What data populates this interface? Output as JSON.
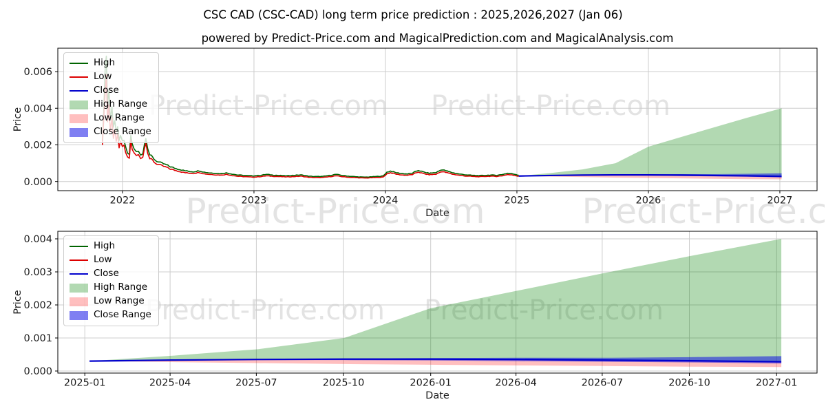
{
  "title": "CSC CAD (CSC-CAD) long term price prediction : 2025,2026,2027 (Jan 06)",
  "subtitle": "powered by Predict-Price.com and MagicalPrediction.com and MagicalAnalysis.com",
  "watermark": {
    "text": "Predict-Price.com",
    "color": "#e3e3e3"
  },
  "colors": {
    "high_line": "#006400",
    "low_line": "#dd0000",
    "close_line": "#0000cd",
    "high_range_fill": "rgba(0,128,0,0.3)",
    "low_range_fill": "rgba(255,0,0,0.25)",
    "close_range_fill": "rgba(0,0,230,0.5)",
    "grid": "#cccccc",
    "spine": "#000000",
    "tick_text": "#1a1a1a"
  },
  "legend_items": [
    {
      "label": "High",
      "type": "line",
      "color": "#006400"
    },
    {
      "label": "Low",
      "type": "line",
      "color": "#dd0000"
    },
    {
      "label": "Close",
      "type": "line",
      "color": "#0000cd"
    },
    {
      "label": "High Range",
      "type": "patch",
      "color": "rgba(0,128,0,0.3)"
    },
    {
      "label": "Low Range",
      "type": "patch",
      "color": "rgba(255,0,0,0.25)"
    },
    {
      "label": "Close Range",
      "type": "patch",
      "color": "rgba(0,0,230,0.5)"
    }
  ],
  "chart_data": [
    {
      "type": "line",
      "name": "history-and-forecast",
      "xlabel": "Date",
      "ylabel": "Price",
      "grid": true,
      "legend_position": "upper left",
      "xtick_labels": [
        "2022",
        "2023",
        "2024",
        "2025",
        "2026",
        "2027"
      ],
      "xtick_years": [
        2022,
        2023,
        2024,
        2025,
        2026,
        2027
      ],
      "ytick_labels": [
        "0.000",
        "0.002",
        "0.004",
        "0.006"
      ],
      "ytick_values": [
        0.0,
        0.002,
        0.004,
        0.006
      ],
      "xlim_years": [
        2021.508,
        2027.283
      ],
      "ylim": [
        -0.0005,
        0.00728
      ],
      "historical_series_note": "triples of [date, low, high]",
      "historical": [
        [
          "2021-11-06",
          0.0021,
          0.0023
        ],
        [
          "2021-11-10",
          0.0034,
          0.0038
        ],
        [
          "2021-11-14",
          0.0052,
          0.0066
        ],
        [
          "2021-11-17",
          0.0058,
          0.0068
        ],
        [
          "2021-11-20",
          0.0033,
          0.0042
        ],
        [
          "2021-11-24",
          0.0042,
          0.005
        ],
        [
          "2021-11-28",
          0.0027,
          0.0033
        ],
        [
          "2021-12-02",
          0.0036,
          0.0042
        ],
        [
          "2021-12-06",
          0.0024,
          0.003
        ],
        [
          "2021-12-10",
          0.0028,
          0.0033
        ],
        [
          "2021-12-14",
          0.0021,
          0.0026
        ],
        [
          "2021-12-18",
          0.0025,
          0.0029
        ],
        [
          "2021-12-22",
          0.0019,
          0.0023
        ],
        [
          "2021-12-26",
          0.0021,
          0.0024
        ],
        [
          "2021-12-31",
          0.00185,
          0.00215
        ],
        [
          "2022-01-05",
          0.002,
          0.00225
        ],
        [
          "2022-01-10",
          0.0015,
          0.0018
        ],
        [
          "2022-01-15",
          0.00135,
          0.00155
        ],
        [
          "2022-01-20",
          0.00125,
          0.00145
        ],
        [
          "2022-01-24",
          0.0023,
          0.00255
        ],
        [
          "2022-01-28",
          0.0017,
          0.002
        ],
        [
          "2022-02-03",
          0.00155,
          0.00175
        ],
        [
          "2022-02-09",
          0.0014,
          0.0016
        ],
        [
          "2022-02-15",
          0.00148,
          0.00165
        ],
        [
          "2022-02-21",
          0.0013,
          0.00148
        ],
        [
          "2022-02-27",
          0.00135,
          0.00152
        ],
        [
          "2022-03-05",
          0.0022,
          0.00245
        ],
        [
          "2022-03-10",
          0.0016,
          0.00185
        ],
        [
          "2022-03-16",
          0.00125,
          0.00145
        ],
        [
          "2022-03-24",
          0.00115,
          0.0013
        ],
        [
          "2022-04-01",
          0.001,
          0.00115
        ],
        [
          "2022-04-10",
          0.00092,
          0.00105
        ],
        [
          "2022-04-20",
          0.00085,
          0.00098
        ],
        [
          "2022-05-01",
          0.00078,
          0.0009
        ],
        [
          "2022-05-12",
          0.00068,
          0.0008
        ],
        [
          "2022-05-24",
          0.00062,
          0.00072
        ],
        [
          "2022-06-05",
          0.00056,
          0.00066
        ],
        [
          "2022-06-17",
          0.0005,
          0.0006
        ],
        [
          "2022-07-01",
          0.00046,
          0.00055
        ],
        [
          "2022-07-15",
          0.00044,
          0.00052
        ],
        [
          "2022-08-01",
          0.0005,
          0.00058
        ],
        [
          "2022-08-15",
          0.00042,
          0.0005
        ],
        [
          "2022-09-01",
          0.00039,
          0.00046
        ],
        [
          "2022-09-15",
          0.00037,
          0.00044
        ],
        [
          "2022-10-01",
          0.00035,
          0.00042
        ],
        [
          "2022-10-15",
          0.00039,
          0.00046
        ],
        [
          "2022-11-01",
          0.00033,
          0.0004
        ],
        [
          "2022-11-15",
          0.00029,
          0.00035
        ],
        [
          "2022-12-01",
          0.00027,
          0.00033
        ],
        [
          "2022-12-15",
          0.00025,
          0.00031
        ],
        [
          "2023-01-01",
          0.00024,
          0.0003
        ],
        [
          "2023-01-20",
          0.00027,
          0.00033
        ],
        [
          "2023-02-05",
          0.00031,
          0.00038
        ],
        [
          "2023-02-20",
          0.00029,
          0.00035
        ],
        [
          "2023-03-10",
          0.00027,
          0.00032
        ],
        [
          "2023-04-01",
          0.00025,
          0.0003
        ],
        [
          "2023-04-20",
          0.00027,
          0.00033
        ],
        [
          "2023-05-10",
          0.00029,
          0.00035
        ],
        [
          "2023-06-01",
          0.00023,
          0.00028
        ],
        [
          "2023-06-20",
          0.00021,
          0.00026
        ],
        [
          "2023-07-10",
          0.00022,
          0.00027
        ],
        [
          "2023-08-01",
          0.00027,
          0.00033
        ],
        [
          "2023-08-15",
          0.00031,
          0.00038
        ],
        [
          "2023-09-01",
          0.00027,
          0.00033
        ],
        [
          "2023-09-20",
          0.00023,
          0.00028
        ],
        [
          "2023-10-10",
          0.00021,
          0.00025
        ],
        [
          "2023-11-01",
          0.00019,
          0.00023
        ],
        [
          "2023-11-20",
          0.0002,
          0.00024
        ],
        [
          "2023-12-10",
          0.00022,
          0.00027
        ],
        [
          "2023-12-25",
          0.00024,
          0.00029
        ],
        [
          "2024-01-05",
          0.00042,
          0.0005
        ],
        [
          "2024-01-15",
          0.00048,
          0.00056
        ],
        [
          "2024-02-01",
          0.0004,
          0.00047
        ],
        [
          "2024-02-15",
          0.00036,
          0.00043
        ],
        [
          "2024-03-01",
          0.00034,
          0.0004
        ],
        [
          "2024-03-15",
          0.00038,
          0.00045
        ],
        [
          "2024-04-01",
          0.00052,
          0.0006
        ],
        [
          "2024-04-15",
          0.00043,
          0.00051
        ],
        [
          "2024-05-01",
          0.00037,
          0.00044
        ],
        [
          "2024-05-20",
          0.0004,
          0.00048
        ],
        [
          "2024-06-05",
          0.00055,
          0.00064
        ],
        [
          "2024-06-20",
          0.00048,
          0.00056
        ],
        [
          "2024-07-05",
          0.0004,
          0.00047
        ],
        [
          "2024-07-20",
          0.00035,
          0.00041
        ],
        [
          "2024-08-05",
          0.00031,
          0.00037
        ],
        [
          "2024-08-20",
          0.00029,
          0.00034
        ],
        [
          "2024-09-05",
          0.00027,
          0.00032
        ],
        [
          "2024-09-20",
          0.00026,
          0.00031
        ],
        [
          "2024-10-05",
          0.00028,
          0.00033
        ],
        [
          "2024-10-20",
          0.00029,
          0.00034
        ],
        [
          "2024-11-05",
          0.00028,
          0.00033
        ],
        [
          "2024-11-20",
          0.00031,
          0.00037
        ],
        [
          "2024-12-05",
          0.00038,
          0.00044
        ],
        [
          "2024-12-20",
          0.00035,
          0.00041
        ],
        [
          "2025-01-06",
          0.00029,
          0.00034
        ]
      ],
      "prediction": {
        "dates": [
          "2025-01-06",
          "2025-04-01",
          "2025-07-01",
          "2025-10-01",
          "2026-01-01",
          "2026-04-01",
          "2026-07-01",
          "2026-10-01",
          "2027-01-06"
        ],
        "close": [
          0.0003,
          0.00033,
          0.00035,
          0.00036,
          0.00036,
          0.00035,
          0.00033,
          0.00031,
          0.00028
        ],
        "high_upper": [
          0.0003,
          0.00046,
          0.00066,
          0.001,
          0.0019,
          0.00243,
          0.00296,
          0.00348,
          0.004
        ],
        "low_lower": [
          0.0003,
          0.00027,
          0.00024,
          0.00021,
          0.00019,
          0.00017,
          0.00015,
          0.00013,
          0.00012
        ],
        "close_upper": [
          0.0003,
          0.00034,
          0.00036,
          0.00038,
          0.00039,
          0.0004,
          0.0004,
          0.00042,
          0.00045
        ],
        "close_lower": [
          0.0003,
          0.00032,
          0.00033,
          0.00033,
          0.00032,
          0.0003,
          0.00028,
          0.00026,
          0.00023
        ]
      }
    },
    {
      "type": "line",
      "name": "forecast-detail",
      "xlabel": "Date",
      "ylabel": "Price",
      "grid": true,
      "legend_position": "upper left",
      "xtick_labels": [
        "2025-01",
        "2025-04",
        "2025-07",
        "2025-10",
        "2026-01",
        "2026-04",
        "2026-07",
        "2026-10",
        "2027-01"
      ],
      "xtick_years": [
        2025.0,
        2025.2466,
        2025.4959,
        2025.7479,
        2026.0,
        2026.2466,
        2026.4959,
        2026.7479,
        2027.0
      ],
      "ytick_labels": [
        "0.000",
        "0.001",
        "0.002",
        "0.003",
        "0.004"
      ],
      "ytick_values": [
        0.0,
        0.001,
        0.002,
        0.003,
        0.004
      ],
      "xlim_years": [
        2024.922,
        2027.117
      ],
      "ylim": [
        -6.25e-05,
        0.0042292
      ],
      "historical": null,
      "prediction": {
        "dates": [
          "2025-01-06",
          "2025-04-01",
          "2025-07-01",
          "2025-10-01",
          "2026-01-01",
          "2026-04-01",
          "2026-07-01",
          "2026-10-01",
          "2027-01-06"
        ],
        "close": [
          0.0003,
          0.00033,
          0.00035,
          0.00036,
          0.00036,
          0.00035,
          0.00033,
          0.00031,
          0.00028
        ],
        "high_upper": [
          0.0003,
          0.00046,
          0.00066,
          0.001,
          0.0019,
          0.00243,
          0.00296,
          0.00348,
          0.004
        ],
        "low_lower": [
          0.0003,
          0.00027,
          0.00024,
          0.00021,
          0.00019,
          0.00017,
          0.00015,
          0.00013,
          0.00012
        ],
        "close_upper": [
          0.0003,
          0.00034,
          0.00036,
          0.00038,
          0.00039,
          0.0004,
          0.0004,
          0.00042,
          0.00045
        ],
        "close_lower": [
          0.0003,
          0.00032,
          0.00033,
          0.00033,
          0.00032,
          0.0003,
          0.00028,
          0.00026,
          0.00023
        ]
      }
    }
  ]
}
